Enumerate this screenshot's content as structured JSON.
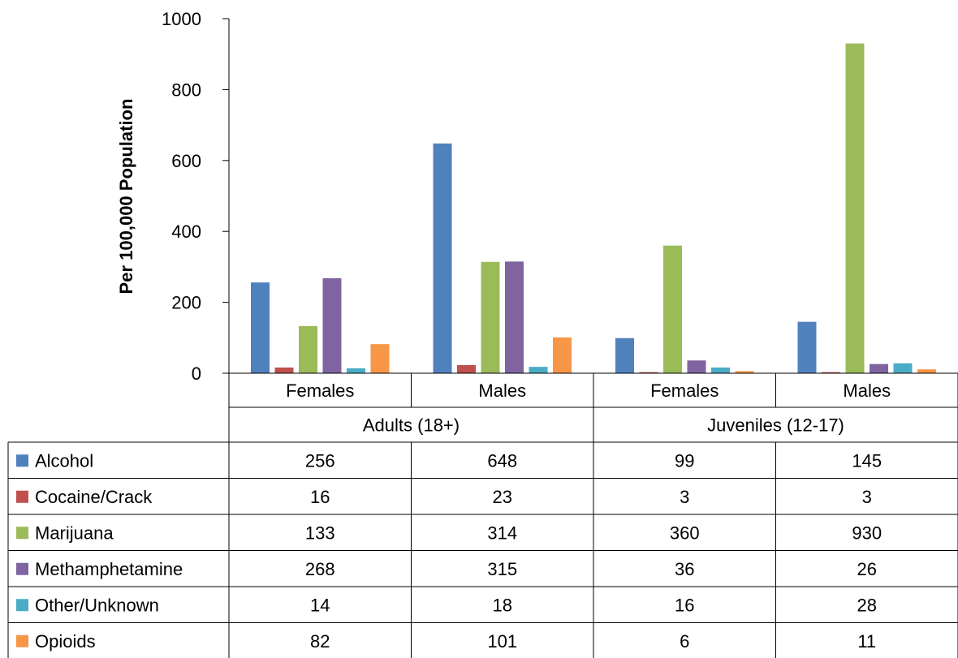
{
  "chart_data": {
    "type": "bar",
    "ylabel": "Per 100,000 Population",
    "ylim": [
      0,
      1000
    ],
    "yticks": [
      0,
      200,
      400,
      600,
      800,
      1000
    ],
    "categories": [
      "Females",
      "Males",
      "Females",
      "Males"
    ],
    "groups": [
      {
        "label": "Adults (18+)",
        "span": 2
      },
      {
        "label": "Juveniles (12-17)",
        "span": 2
      }
    ],
    "series": [
      {
        "name": "Alcohol",
        "color": "#4f81bd",
        "values": [
          256,
          648,
          99,
          145
        ]
      },
      {
        "name": "Cocaine/Crack",
        "color": "#c0504d",
        "values": [
          16,
          23,
          3,
          3
        ]
      },
      {
        "name": "Marijuana",
        "color": "#9bbb59",
        "values": [
          133,
          314,
          360,
          930
        ]
      },
      {
        "name": "Methamphetamine",
        "color": "#8064a2",
        "values": [
          268,
          315,
          36,
          26
        ]
      },
      {
        "name": "Other/Unknown",
        "color": "#4bacc6",
        "values": [
          14,
          18,
          16,
          28
        ]
      },
      {
        "name": "Opioids",
        "color": "#f79646",
        "values": [
          82,
          101,
          6,
          11
        ]
      }
    ],
    "grid": false,
    "legend": "data table below chart"
  }
}
